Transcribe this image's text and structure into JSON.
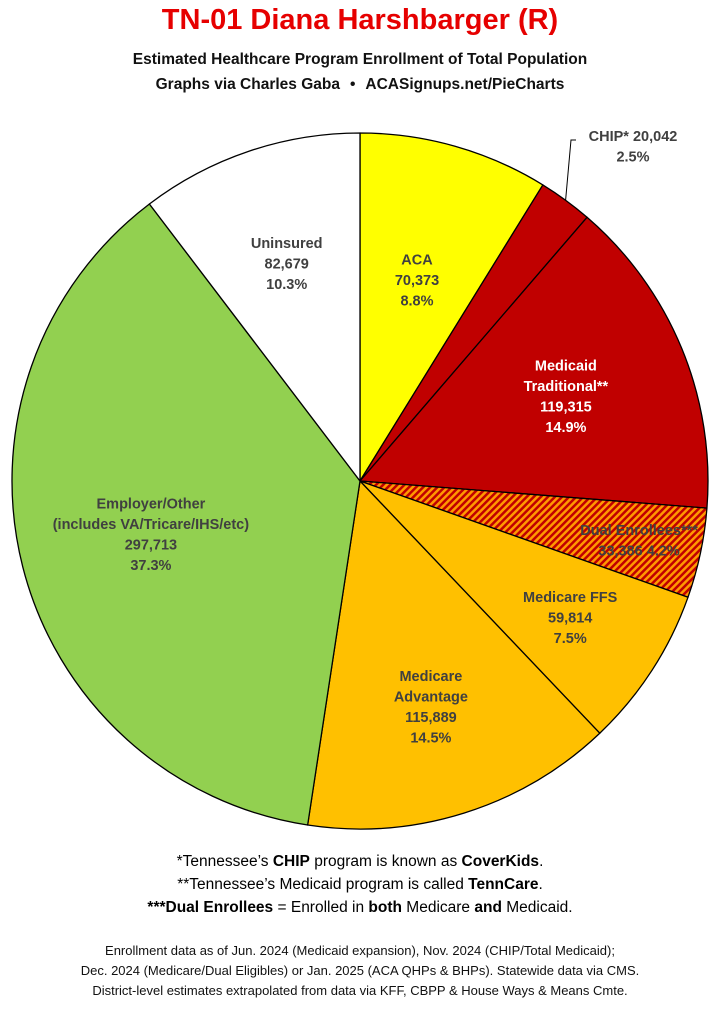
{
  "chart_data": {
    "type": "pie",
    "title": "TN-01 Diana Harshbarger (R)",
    "subtitle": "Estimated Healthcare Program Enrollment of Total Population",
    "credit_left": "Graphs via Charles Gaba",
    "credit_sep": "•",
    "credit_right": "ACASignups.net/PieCharts",
    "start_angle_deg": 0,
    "direction": "clockwise",
    "slices": [
      {
        "label": "ACA",
        "lines": [
          "ACA",
          "70,373",
          "8.8%"
        ],
        "value": 70373,
        "percent": 8.8,
        "color": "#ffff00",
        "text_color": "#404040"
      },
      {
        "label": "CHIP*",
        "lines": [
          "CHIP* 20,042",
          "2.5%"
        ],
        "value": 20042,
        "percent": 2.5,
        "color": "#c00000",
        "text_color": "#404040",
        "external": true
      },
      {
        "label": "Medicaid Traditional**",
        "lines": [
          "Medicaid",
          "Traditional**",
          "119,315",
          "14.9%"
        ],
        "value": 119315,
        "percent": 14.9,
        "color": "#c00000",
        "text_color": "#ffffff"
      },
      {
        "label": "Dual Enrollees***",
        "lines": [
          "Dual Enrollees***",
          "33,386 4.2%"
        ],
        "value": 33386,
        "percent": 4.2,
        "color": "#c00000",
        "text_color": "#404040",
        "pattern": "hatched-orange"
      },
      {
        "label": "Medicare FFS",
        "lines": [
          "Medicare FFS",
          "59,814",
          "7.5%"
        ],
        "value": 59814,
        "percent": 7.5,
        "color": "#ffc000",
        "text_color": "#404040"
      },
      {
        "label": "Medicare Advantage",
        "lines": [
          "Medicare",
          "Advantage",
          "115,889",
          "14.5%"
        ],
        "value": 115889,
        "percent": 14.5,
        "color": "#ffc000",
        "text_color": "#404040"
      },
      {
        "label": "Employer/Other",
        "lines": [
          "Employer/Other",
          "(includes VA/Tricare/IHS/etc)",
          "297,713",
          "37.3%"
        ],
        "value": 297713,
        "percent": 37.3,
        "color": "#92d050",
        "text_color": "#404040"
      },
      {
        "label": "Uninsured",
        "lines": [
          "Uninsured",
          "82,679",
          "10.3%"
        ],
        "value": 82679,
        "percent": 10.3,
        "color": "#ffffff",
        "text_color": "#404040"
      }
    ]
  },
  "footnotes": {
    "line1": {
      "a": "*Tennessee’s ",
      "b": "CHIP",
      "c": " program is known as ",
      "d": "CoverKids",
      "e": "."
    },
    "line2": {
      "a": "**Tennessee’s Medicaid program is called ",
      "b": "TennCare",
      "c": "."
    },
    "line3": {
      "a": "***Dual Enrollees",
      "b": " = Enrolled in ",
      "c": "both",
      "d": " Medicare ",
      "e": "and",
      "f": " Medicaid."
    }
  },
  "source": {
    "line1": "Enrollment data as of Jun. 2024 (Medicaid expansion), Nov. 2024 (CHIP/Total Medicaid);",
    "line2": "Dec. 2024 (Medicare/Dual Eligibles) or Jan. 2025 (ACA QHPs & BHPs). Statewide data via CMS.",
    "line3": "District-level estimates extrapolated from data via KFF, CBPP & House Ways & Means Cmte."
  }
}
